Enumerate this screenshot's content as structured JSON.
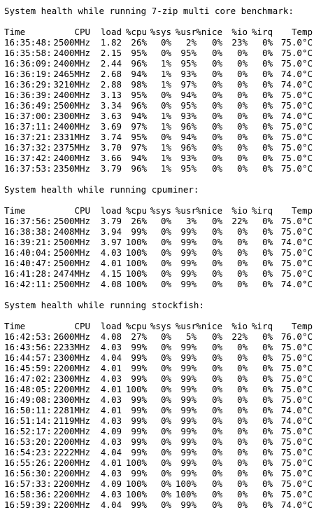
{
  "columns": {
    "time": "Time",
    "cpu": "CPU",
    "load": "load",
    "pcpu": "%cpu",
    "sys": "%sys",
    "usr": "%usr",
    "nice": "%nice",
    "io": "%io",
    "irq": "%irq",
    "temp": "Temp"
  },
  "sections": [
    {
      "title": "System health while running 7-zip multi core benchmark:",
      "rows": [
        [
          "16:35:48:",
          "2500MHz",
          "1.82",
          "26%",
          "0%",
          "2%",
          "0%",
          "23%",
          "0%",
          "75.0°C"
        ],
        [
          "16:35:58:",
          "2400MHz",
          "2.15",
          "95%",
          "0%",
          "95%",
          "0%",
          "0%",
          "0%",
          "75.0°C"
        ],
        [
          "16:36:09:",
          "2400MHz",
          "2.44",
          "96%",
          "1%",
          "95%",
          "0%",
          "0%",
          "0%",
          "75.0°C"
        ],
        [
          "16:36:19:",
          "2465MHz",
          "2.68",
          "94%",
          "1%",
          "93%",
          "0%",
          "0%",
          "0%",
          "74.0°C"
        ],
        [
          "16:36:29:",
          "3210MHz",
          "2.88",
          "98%",
          "1%",
          "97%",
          "0%",
          "0%",
          "0%",
          "74.0°C"
        ],
        [
          "16:36:39:",
          "2400MHz",
          "3.13",
          "95%",
          "0%",
          "94%",
          "0%",
          "0%",
          "0%",
          "75.0°C"
        ],
        [
          "16:36:49:",
          "2500MHz",
          "3.34",
          "96%",
          "0%",
          "95%",
          "0%",
          "0%",
          "0%",
          "75.0°C"
        ],
        [
          "16:37:00:",
          "2300MHz",
          "3.63",
          "94%",
          "1%",
          "93%",
          "0%",
          "0%",
          "0%",
          "74.0°C"
        ],
        [
          "16:37:11:",
          "2400MHz",
          "3.69",
          "97%",
          "1%",
          "96%",
          "0%",
          "0%",
          "0%",
          "75.0°C"
        ],
        [
          "16:37:21:",
          "2331MHz",
          "3.74",
          "95%",
          "0%",
          "94%",
          "0%",
          "0%",
          "0%",
          "75.0°C"
        ],
        [
          "16:37:32:",
          "2375MHz",
          "3.70",
          "97%",
          "1%",
          "96%",
          "0%",
          "0%",
          "0%",
          "75.0°C"
        ],
        [
          "16:37:42:",
          "2400MHz",
          "3.66",
          "94%",
          "1%",
          "93%",
          "0%",
          "0%",
          "0%",
          "75.0°C"
        ],
        [
          "16:37:53:",
          "2350MHz",
          "3.79",
          "96%",
          "1%",
          "95%",
          "0%",
          "0%",
          "0%",
          "75.0°C"
        ]
      ]
    },
    {
      "title": "System health while running cpuminer:",
      "rows": [
        [
          "16:37:56:",
          "2500MHz",
          "3.79",
          "26%",
          "0%",
          "3%",
          "0%",
          "22%",
          "0%",
          "75.0°C"
        ],
        [
          "16:38:38:",
          "2408MHz",
          "3.94",
          "99%",
          "0%",
          "99%",
          "0%",
          "0%",
          "0%",
          "75.0°C"
        ],
        [
          "16:39:21:",
          "2500MHz",
          "3.97",
          "100%",
          "0%",
          "99%",
          "0%",
          "0%",
          "0%",
          "74.0°C"
        ],
        [
          "16:40:04:",
          "2500MHz",
          "4.03",
          "100%",
          "0%",
          "99%",
          "0%",
          "0%",
          "0%",
          "75.0°C"
        ],
        [
          "16:40:47:",
          "2500MHz",
          "4.01",
          "100%",
          "0%",
          "99%",
          "0%",
          "0%",
          "0%",
          "75.0°C"
        ],
        [
          "16:41:28:",
          "2474MHz",
          "4.15",
          "100%",
          "0%",
          "99%",
          "0%",
          "0%",
          "0%",
          "75.0°C"
        ],
        [
          "16:42:11:",
          "2500MHz",
          "4.08",
          "100%",
          "0%",
          "99%",
          "0%",
          "0%",
          "0%",
          "74.0°C"
        ]
      ]
    },
    {
      "title": "System health while running stockfish:",
      "rows": [
        [
          "16:42:53:",
          "2600MHz",
          "4.08",
          "27%",
          "0%",
          "5%",
          "0%",
          "22%",
          "0%",
          "76.0°C"
        ],
        [
          "16:43:56:",
          "2233MHz",
          "4.03",
          "99%",
          "0%",
          "99%",
          "0%",
          "0%",
          "0%",
          "75.0°C"
        ],
        [
          "16:44:57:",
          "2300MHz",
          "4.04",
          "99%",
          "0%",
          "99%",
          "0%",
          "0%",
          "0%",
          "75.0°C"
        ],
        [
          "16:45:59:",
          "2200MHz",
          "4.01",
          "99%",
          "0%",
          "99%",
          "0%",
          "0%",
          "0%",
          "75.0°C"
        ],
        [
          "16:47:02:",
          "2300MHz",
          "4.03",
          "99%",
          "0%",
          "99%",
          "0%",
          "0%",
          "0%",
          "75.0°C"
        ],
        [
          "16:48:05:",
          "2200MHz",
          "4.01",
          "100%",
          "0%",
          "99%",
          "0%",
          "0%",
          "0%",
          "75.0°C"
        ],
        [
          "16:49:08:",
          "2300MHz",
          "4.03",
          "99%",
          "0%",
          "99%",
          "0%",
          "0%",
          "0%",
          "75.0°C"
        ],
        [
          "16:50:11:",
          "2281MHz",
          "4.01",
          "99%",
          "0%",
          "99%",
          "0%",
          "0%",
          "0%",
          "74.0°C"
        ],
        [
          "16:51:14:",
          "2119MHz",
          "4.03",
          "99%",
          "0%",
          "99%",
          "0%",
          "0%",
          "0%",
          "74.0°C"
        ],
        [
          "16:52:17:",
          "2200MHz",
          "4.09",
          "99%",
          "0%",
          "99%",
          "0%",
          "0%",
          "0%",
          "75.0°C"
        ],
        [
          "16:53:20:",
          "2200MHz",
          "4.03",
          "99%",
          "0%",
          "99%",
          "0%",
          "0%",
          "0%",
          "75.0°C"
        ],
        [
          "16:54:23:",
          "2222MHz",
          "4.04",
          "99%",
          "0%",
          "99%",
          "0%",
          "0%",
          "0%",
          "75.0°C"
        ],
        [
          "16:55:26:",
          "2200MHz",
          "4.01",
          "100%",
          "0%",
          "99%",
          "0%",
          "0%",
          "0%",
          "75.0°C"
        ],
        [
          "16:56:30:",
          "2200MHz",
          "4.03",
          "99%",
          "0%",
          "99%",
          "0%",
          "0%",
          "0%",
          "75.0°C"
        ],
        [
          "16:57:33:",
          "2200MHz",
          "4.09",
          "100%",
          "0%",
          "100%",
          "0%",
          "0%",
          "0%",
          "75.0°C"
        ],
        [
          "16:58:36:",
          "2200MHz",
          "4.03",
          "100%",
          "0%",
          "100%",
          "0%",
          "0%",
          "0%",
          "75.0°C"
        ],
        [
          "16:59:39:",
          "2200MHz",
          "4.04",
          "99%",
          "0%",
          "99%",
          "0%",
          "0%",
          "0%",
          "74.0°C"
        ]
      ]
    }
  ]
}
